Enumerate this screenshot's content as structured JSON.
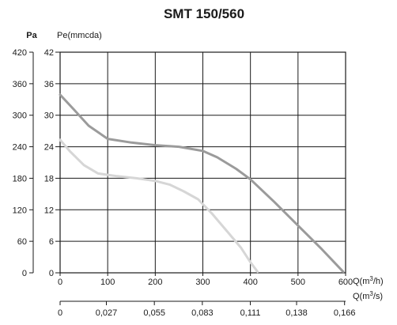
{
  "chart_data": {
    "type": "line",
    "title": "SMT 150/560",
    "x_axis": {
      "label": "Q(m3/h)",
      "label_main": "Q(m",
      "label_sup": "3",
      "label_tail": "/h)",
      "range": [
        0,
        600
      ],
      "ticks": [
        "0",
        "100",
        "200",
        "300",
        "400",
        "500",
        "600"
      ],
      "tick_values": [
        0,
        100,
        200,
        300,
        400,
        500,
        600
      ]
    },
    "x2_axis": {
      "label": "Q(m3/s)",
      "label_main": "Q(m",
      "label_sup": "3",
      "label_tail": "/s)",
      "range": [
        0,
        0.1666
      ],
      "ticks": [
        "0",
        "0,027",
        "0,055",
        "0,083",
        "0,111",
        "0,138",
        "0,166"
      ],
      "tick_values": [
        0,
        0.027,
        0.055,
        0.083,
        0.111,
        0.138,
        0.166
      ]
    },
    "y_axis_left": {
      "label": "Pa",
      "range": [
        0,
        420
      ],
      "ticks": [
        "0",
        "60",
        "120",
        "180",
        "240",
        "300",
        "360",
        "420"
      ],
      "tick_values": [
        0,
        60,
        120,
        180,
        240,
        300,
        360,
        420
      ]
    },
    "y_axis_right": {
      "label": "Pe(mmcda)",
      "range": [
        0,
        42
      ],
      "ticks": [
        "0",
        "6",
        "12",
        "18",
        "24",
        "30",
        "36",
        "42"
      ],
      "tick_values": [
        0,
        6,
        12,
        18,
        24,
        30,
        36,
        42
      ]
    },
    "grid": true,
    "series": [
      {
        "color": "#9b9b9b",
        "x": [
          0,
          30,
          60,
          100,
          150,
          200,
          250,
          300,
          330,
          370,
          400,
          450,
          500,
          550,
          595
        ],
        "y": [
          339,
          310,
          280,
          255,
          248,
          243,
          240,
          232,
          220,
          198,
          178,
          135,
          90,
          45,
          2
        ]
      },
      {
        "color": "#d6d6d6",
        "x": [
          0,
          20,
          50,
          80,
          120,
          160,
          200,
          230,
          260,
          290,
          320,
          350,
          380,
          400,
          415
        ],
        "y": [
          253,
          232,
          205,
          189,
          184,
          180,
          175,
          168,
          155,
          140,
          112,
          80,
          48,
          20,
          2
        ]
      }
    ]
  }
}
